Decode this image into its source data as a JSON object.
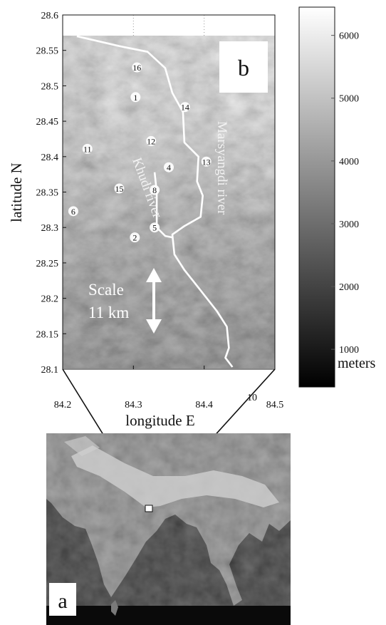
{
  "panel_b": {
    "label": "b",
    "x_axis": {
      "label": "longitude E",
      "ticks": [
        "84.2",
        "84.3",
        "84.4",
        "84.5"
      ],
      "range": [
        84.2,
        84.5
      ],
      "extra_tick": "10"
    },
    "y_axis": {
      "label": "latitude N",
      "ticks": [
        "28.6",
        "28.55",
        "28.5",
        "28.45",
        "28.4",
        "28.35",
        "28.3",
        "28.25",
        "28.2",
        "28.15",
        "28.1"
      ],
      "range": [
        28.1,
        28.6
      ]
    },
    "grid": "dotted",
    "rivers": [
      {
        "name": "Marsyangdi river",
        "points": [
          [
            84.22,
            28.57
          ],
          [
            84.28,
            28.556
          ],
          [
            84.32,
            28.548
          ],
          [
            84.345,
            28.525
          ],
          [
            84.355,
            28.49
          ],
          [
            84.37,
            28.463
          ],
          [
            84.372,
            28.42
          ],
          [
            84.392,
            28.4
          ],
          [
            84.39,
            28.365
          ],
          [
            84.398,
            28.345
          ],
          [
            84.395,
            28.315
          ],
          [
            84.372,
            28.302
          ],
          [
            84.355,
            28.29
          ],
          [
            84.358,
            28.262
          ],
          [
            84.372,
            28.24
          ],
          [
            84.392,
            28.215
          ],
          [
            84.418,
            28.182
          ],
          [
            84.432,
            28.16
          ],
          [
            84.435,
            28.13
          ],
          [
            84.43,
            28.116
          ],
          [
            84.44,
            28.103
          ]
        ]
      },
      {
        "name": "Khudi river",
        "points": [
          [
            84.33,
            28.378
          ],
          [
            84.333,
            28.35
          ],
          [
            84.333,
            28.3
          ],
          [
            84.345,
            28.288
          ],
          [
            84.355,
            28.286
          ]
        ]
      }
    ],
    "sites": [
      {
        "label": "16",
        "lon": 84.305,
        "lat": 28.526
      },
      {
        "label": "1",
        "lon": 84.303,
        "lat": 28.484
      },
      {
        "label": "14",
        "lon": 84.373,
        "lat": 28.47
      },
      {
        "label": "12",
        "lon": 84.325,
        "lat": 28.422
      },
      {
        "label": "11",
        "lon": 84.235,
        "lat": 28.411
      },
      {
        "label": "4",
        "lon": 84.35,
        "lat": 28.385
      },
      {
        "label": "13",
        "lon": 84.403,
        "lat": 28.393
      },
      {
        "label": "15",
        "lon": 84.28,
        "lat": 28.355
      },
      {
        "label": "8",
        "lon": 84.33,
        "lat": 28.353
      },
      {
        "label": "6",
        "lon": 84.215,
        "lat": 28.323
      },
      {
        "label": "5",
        "lon": 84.33,
        "lat": 28.3
      },
      {
        "label": "2",
        "lon": 84.302,
        "lat": 28.286
      }
    ],
    "river_labels": [
      "Marsyangdi river",
      "Khudi river"
    ],
    "scale": {
      "title": "Scale",
      "value": "11 km"
    }
  },
  "colorbar": {
    "unit": "meters",
    "ticks": [
      "6000",
      "5000",
      "4000",
      "3000",
      "2000",
      "1000"
    ],
    "values": [
      6000,
      5000,
      4000,
      3000,
      2000,
      1000
    ],
    "range": [
      400,
      6450
    ],
    "colors": [
      "#000000",
      "#ffffff"
    ]
  },
  "panel_a": {
    "label": "a",
    "colors": {
      "ocean": "#0a0a0a",
      "land": "#7a7a7a",
      "highland": "#d0d0d0"
    }
  }
}
